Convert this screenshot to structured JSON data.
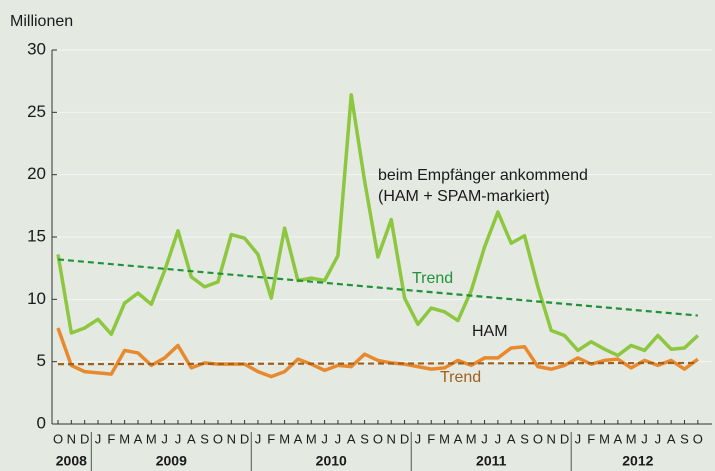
{
  "chart_data": {
    "type": "line",
    "ylabel": "Millionen",
    "ylim": [
      0,
      30
    ],
    "yticks": [
      0,
      5,
      10,
      15,
      20,
      25,
      30
    ],
    "grid": true,
    "categories": [
      "O",
      "N",
      "D",
      "J",
      "F",
      "M",
      "A",
      "M",
      "J",
      "J",
      "A",
      "S",
      "O",
      "N",
      "D",
      "J",
      "F",
      "M",
      "A",
      "M",
      "J",
      "J",
      "A",
      "S",
      "O",
      "N",
      "D",
      "J",
      "F",
      "M",
      "A",
      "M",
      "J",
      "J",
      "A",
      "S",
      "O",
      "N",
      "D",
      "J",
      "F",
      "M",
      "A",
      "M",
      "J",
      "J",
      "A",
      "S",
      "O"
    ],
    "years": [
      "2008",
      "2009",
      "2010",
      "2011",
      "2012"
    ],
    "series": [
      {
        "name": "beim Empfänger ankommend",
        "name_line2": "(HAM + SPAM-markiert)",
        "color": "#8dc63f",
        "values": [
          13.6,
          7.3,
          7.7,
          8.4,
          7.2,
          9.7,
          10.5,
          9.6,
          12.3,
          15.5,
          11.8,
          11.0,
          11.4,
          15.2,
          14.9,
          13.6,
          10.1,
          15.7,
          11.5,
          11.7,
          11.5,
          13.5,
          26.4,
          19.5,
          13.4,
          16.4,
          10.1,
          8.0,
          9.3,
          9.0,
          8.3,
          10.7,
          14.2,
          17.0,
          14.5,
          15.1,
          11.0,
          7.5,
          7.1,
          5.9,
          6.6,
          6.0,
          5.5,
          6.3,
          5.9,
          7.1,
          6.0,
          6.1,
          7.1
        ],
        "trend": {
          "name": "Trend",
          "color": "#22923a",
          "values": [
            13.2,
            8.7
          ]
        }
      },
      {
        "name": "HAM",
        "color": "#e8892e",
        "values": [
          7.7,
          4.7,
          4.2,
          4.1,
          4.0,
          5.9,
          5.7,
          4.7,
          5.3,
          6.3,
          4.5,
          4.9,
          4.8,
          4.8,
          4.8,
          4.2,
          3.8,
          4.2,
          5.2,
          4.8,
          4.3,
          4.7,
          4.6,
          5.6,
          5.1,
          4.9,
          4.8,
          4.6,
          4.4,
          4.5,
          5.1,
          4.7,
          5.3,
          5.3,
          6.1,
          6.2,
          4.6,
          4.4,
          4.7,
          5.3,
          4.8,
          5.1,
          5.2,
          4.5,
          5.1,
          4.7,
          5.1,
          4.4,
          5.2
        ],
        "trend": {
          "name": "Trend",
          "color": "#a0601e",
          "values": [
            4.8,
            4.9
          ]
        }
      }
    ]
  }
}
